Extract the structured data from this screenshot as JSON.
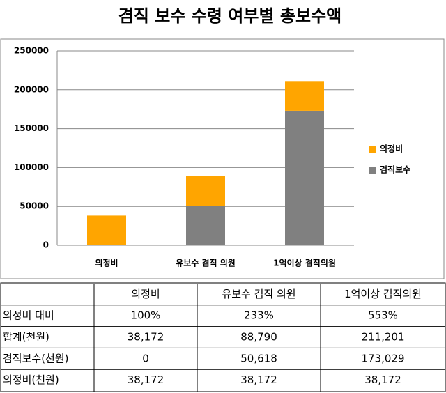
{
  "chart_data": {
    "type": "stacked_bar",
    "title": "겸직 보수 수령 여부별 총보수액",
    "categories": [
      "의정비",
      "유보수 겸직 의원",
      "1억이상 겸직의원"
    ],
    "series": [
      {
        "name": "겸직보수",
        "color": "#808080",
        "values": [
          0,
          50618,
          173029
        ]
      },
      {
        "name": "의정비",
        "color": "#ffa500",
        "values": [
          38172,
          38172,
          38172
        ]
      }
    ],
    "ylim": [
      0,
      250000
    ],
    "yticks": [
      0,
      50000,
      100000,
      150000,
      200000,
      250000
    ],
    "grid": true,
    "legend": "right"
  },
  "table": {
    "columns": [
      "의정비",
      "유보수 겸직 의원",
      "1억이상 겸직의원"
    ],
    "rows": [
      {
        "label": "의정비 대비",
        "cells": [
          "100%",
          "233%",
          "553%"
        ]
      },
      {
        "label": "합계(천원)",
        "cells": [
          "38,172",
          "88,790",
          "211,201"
        ]
      },
      {
        "label": "겸직보수(천원)",
        "cells": [
          "0",
          "50,618",
          "173,029"
        ]
      },
      {
        "label": "의정비(천원)",
        "cells": [
          "38,172",
          "38,172",
          "38,172"
        ]
      }
    ]
  }
}
